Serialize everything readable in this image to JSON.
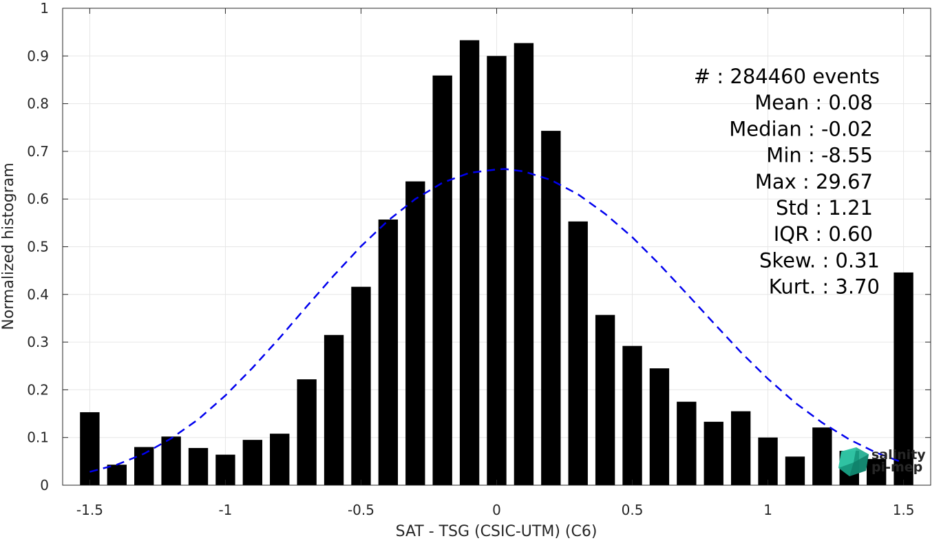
{
  "chart_data": {
    "type": "bar",
    "xlabel": "SAT - TSG (CSIC-UTM) (C6)",
    "ylabel": "Normalized histogram",
    "xlim": [
      -1.6,
      1.6
    ],
    "ylim": [
      0,
      1
    ],
    "grid": true,
    "bar_color": "#000000",
    "fit_color": "#0000ee",
    "x_ticks": [
      -1.5,
      -1,
      -0.5,
      0,
      0.5,
      1,
      1.5
    ],
    "x_tick_labels": [
      "-1.5",
      "-1",
      "-0.5",
      "0",
      "0.5",
      "1",
      "1.5"
    ],
    "y_ticks": [
      0,
      0.1,
      0.2,
      0.3,
      0.4,
      0.5,
      0.6,
      0.7,
      0.8,
      0.9,
      1
    ],
    "y_tick_labels": [
      "0",
      "0.1",
      "0.2",
      "0.3",
      "0.4",
      "0.5",
      "0.6",
      "0.7",
      "0.8",
      "0.9",
      "1"
    ],
    "series": [
      {
        "type": "bar",
        "x": [
          -1.5,
          -1.4,
          -1.3,
          -1.2,
          -1.1,
          -1.0,
          -0.9,
          -0.8,
          -0.7,
          -0.6,
          -0.5,
          -0.4,
          -0.3,
          -0.2,
          -0.1,
          0.0,
          0.1,
          0.2,
          0.3,
          0.4,
          0.5,
          0.6,
          0.7,
          0.8,
          0.9,
          1.0,
          1.1,
          1.2,
          1.3,
          1.4,
          1.5
        ],
        "values": [
          0.153,
          0.043,
          0.08,
          0.102,
          0.078,
          0.064,
          0.095,
          0.108,
          0.222,
          0.315,
          0.416,
          0.557,
          0.637,
          0.859,
          0.933,
          0.9,
          0.927,
          0.743,
          0.553,
          0.357,
          0.292,
          0.245,
          0.175,
          0.133,
          0.155,
          0.1,
          0.06,
          0.121,
          0.072,
          0.055,
          0.446
        ]
      },
      {
        "type": "line",
        "style": "dashed",
        "x": [
          -1.5,
          -1.4,
          -1.3,
          -1.2,
          -1.1,
          -1.0,
          -0.9,
          -0.8,
          -0.7,
          -0.6,
          -0.5,
          -0.4,
          -0.3,
          -0.2,
          -0.1,
          0.0,
          0.03,
          0.1,
          0.2,
          0.3,
          0.4,
          0.5,
          0.6,
          0.7,
          0.8,
          0.9,
          1.0,
          1.1,
          1.2,
          1.3,
          1.4,
          1.5
        ],
        "values": [
          0.028,
          0.043,
          0.066,
          0.098,
          0.138,
          0.188,
          0.246,
          0.309,
          0.375,
          0.44,
          0.501,
          0.555,
          0.6,
          0.634,
          0.655,
          0.662,
          0.663,
          0.658,
          0.64,
          0.61,
          0.569,
          0.52,
          0.463,
          0.402,
          0.34,
          0.279,
          0.223,
          0.173,
          0.131,
          0.096,
          0.068,
          0.047
        ]
      }
    ],
    "stats": [
      "#  : 284460 events",
      "Mean : 0.08",
      "Median : -0.02",
      "Min : -8.55",
      "Max : 29.67",
      "Std : 1.21",
      "IQR : 0.60",
      "Skew. : 0.31",
      "Kurt. : 3.70"
    ]
  },
  "logo": {
    "line1": "salinity",
    "line2": "pi-mep",
    "color": "#1aaa8c"
  }
}
